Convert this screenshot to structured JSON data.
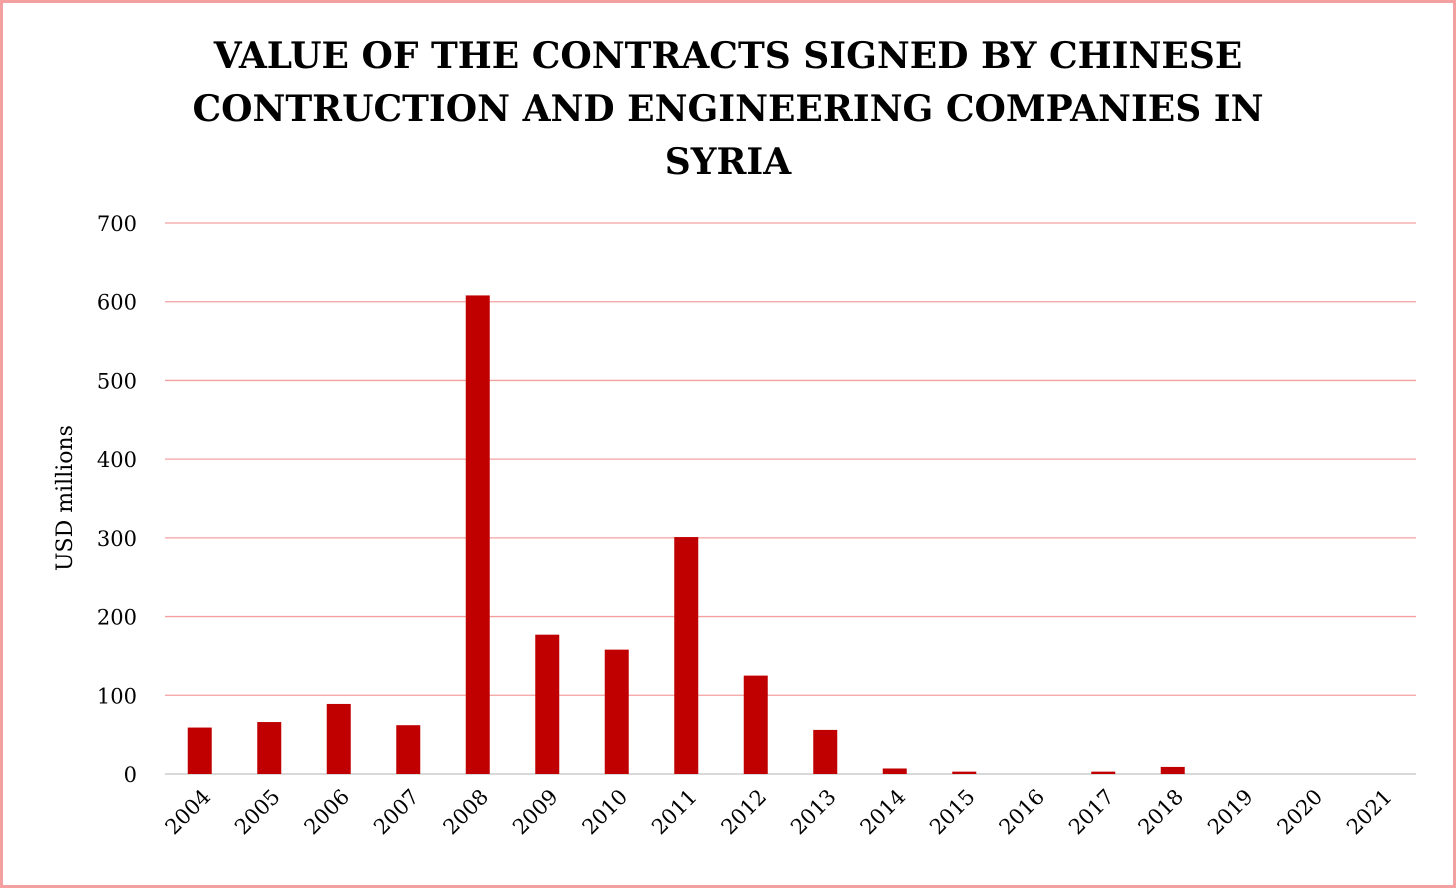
{
  "chart_data": {
    "type": "bar",
    "title": "VALUE OF THE CONTRACTS SIGNED BY CHINESE CONTRUCTION AND ENGINEERING COMPANIES IN SYRIA",
    "xlabel": "",
    "ylabel": "USD millions",
    "ylim": [
      0,
      700
    ],
    "yticks": [
      0,
      100,
      200,
      300,
      400,
      500,
      600,
      700
    ],
    "grid": true,
    "legend": "none",
    "categories": [
      "2004",
      "2005",
      "2006",
      "2007",
      "2008",
      "2009",
      "2010",
      "2011",
      "2012",
      "2013",
      "2014",
      "2015",
      "2016",
      "2017",
      "2018",
      "2019",
      "2020",
      "2021"
    ],
    "values": [
      59,
      66,
      89,
      62,
      608,
      177,
      158,
      301,
      125,
      56,
      7,
      3,
      0,
      3,
      9,
      0,
      0,
      0
    ],
    "colors": {
      "bar": "#c00000",
      "grid": "#f4a0a0",
      "axis": "#d9d9d9",
      "border": "#f4a0a0"
    }
  }
}
